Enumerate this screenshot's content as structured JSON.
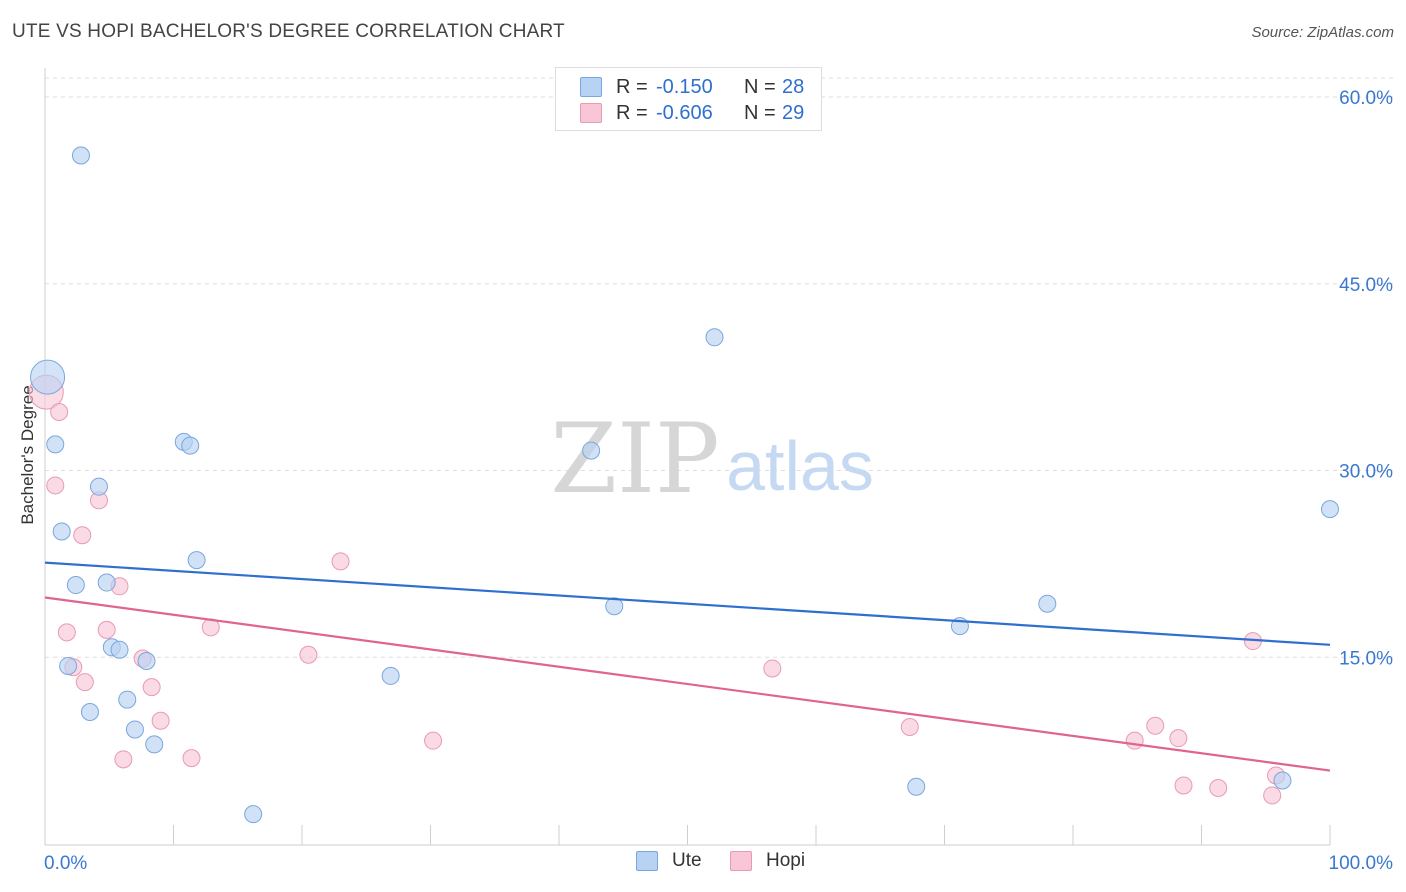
{
  "title": "UTE VS HOPI BACHELOR'S DEGREE CORRELATION CHART",
  "source": "Source: ZipAtlas.com",
  "watermark": {
    "zip": "ZIP",
    "atlas": "atlas"
  },
  "legend": {
    "ute": {
      "r_label": "R =",
      "r_value": "-0.150",
      "n_label": "N =",
      "n_value": "28"
    },
    "hopi": {
      "r_label": "R =",
      "r_value": "-0.606",
      "n_label": "N =",
      "n_value": "29"
    }
  },
  "bottom_legend": {
    "ute": "Ute",
    "hopi": "Hopi"
  },
  "colors": {
    "ute_fill": "#b8d2f3",
    "ute_stroke": "#7aa6de",
    "ute_line": "#2f6fd0",
    "hopi_fill": "#f8c6d6",
    "hopi_stroke": "#e99ab3",
    "hopi_line": "#e06492",
    "axis_text": "#3a78d0",
    "grid": "#dddddd"
  },
  "chart_data": {
    "type": "scatter",
    "title": "UTE VS HOPI BACHELOR'S DEGREE CORRELATION CHART",
    "xlabel": "",
    "ylabel": "Bachelor's Degree",
    "xlim": [
      0,
      100
    ],
    "ylim": [
      0,
      65
    ],
    "x_tick_labels": [
      "0.0%",
      "100.0%"
    ],
    "y_ticks": [
      15,
      30,
      45,
      60
    ],
    "y_tick_labels": [
      "15.0%",
      "30.0%",
      "45.0%",
      "60.0%"
    ],
    "grid": true,
    "series": [
      {
        "name": "Ute",
        "r": -0.15,
        "n": 28,
        "trend": {
          "x": [
            0,
            100
          ],
          "y": [
            22.6,
            16.0
          ]
        },
        "points": [
          {
            "x": 0.2,
            "y": 37.5,
            "big": true
          },
          {
            "x": 2.8,
            "y": 55.3
          },
          {
            "x": 0.8,
            "y": 32.1
          },
          {
            "x": 1.3,
            "y": 25.1
          },
          {
            "x": 1.8,
            "y": 14.3
          },
          {
            "x": 2.4,
            "y": 20.8
          },
          {
            "x": 3.5,
            "y": 10.6
          },
          {
            "x": 4.2,
            "y": 28.7
          },
          {
            "x": 4.8,
            "y": 21.0
          },
          {
            "x": 5.2,
            "y": 15.8
          },
          {
            "x": 5.8,
            "y": 15.6
          },
          {
            "x": 6.4,
            "y": 11.6
          },
          {
            "x": 7.0,
            "y": 9.2
          },
          {
            "x": 7.9,
            "y": 14.7
          },
          {
            "x": 8.5,
            "y": 8.0
          },
          {
            "x": 10.8,
            "y": 32.3
          },
          {
            "x": 11.3,
            "y": 32.0
          },
          {
            "x": 11.8,
            "y": 22.8
          },
          {
            "x": 16.2,
            "y": 2.4
          },
          {
            "x": 26.9,
            "y": 13.5
          },
          {
            "x": 42.5,
            "y": 31.6
          },
          {
            "x": 44.3,
            "y": 19.1
          },
          {
            "x": 52.1,
            "y": 40.7
          },
          {
            "x": 67.8,
            "y": 4.6
          },
          {
            "x": 71.2,
            "y": 17.5
          },
          {
            "x": 78.0,
            "y": 19.3
          },
          {
            "x": 96.3,
            "y": 5.1
          },
          {
            "x": 100.0,
            "y": 26.9
          }
        ]
      },
      {
        "name": "Hopi",
        "r": -0.606,
        "n": 29,
        "trend": {
          "x": [
            0,
            100
          ],
          "y": [
            19.8,
            5.9
          ]
        },
        "points": [
          {
            "x": 0.1,
            "y": 36.3,
            "big": true
          },
          {
            "x": 1.1,
            "y": 34.7
          },
          {
            "x": 0.8,
            "y": 28.8
          },
          {
            "x": 1.7,
            "y": 17.0
          },
          {
            "x": 2.2,
            "y": 14.2
          },
          {
            "x": 3.1,
            "y": 13.0
          },
          {
            "x": 2.9,
            "y": 24.8
          },
          {
            "x": 4.2,
            "y": 27.6
          },
          {
            "x": 4.8,
            "y": 17.2
          },
          {
            "x": 5.8,
            "y": 20.7
          },
          {
            "x": 6.1,
            "y": 6.8
          },
          {
            "x": 7.6,
            "y": 14.9
          },
          {
            "x": 8.3,
            "y": 12.6
          },
          {
            "x": 9.0,
            "y": 9.9
          },
          {
            "x": 11.4,
            "y": 6.9
          },
          {
            "x": 12.9,
            "y": 17.4
          },
          {
            "x": 20.5,
            "y": 15.2
          },
          {
            "x": 23.0,
            "y": 22.7
          },
          {
            "x": 30.2,
            "y": 8.3
          },
          {
            "x": 56.6,
            "y": 14.1
          },
          {
            "x": 67.3,
            "y": 9.4
          },
          {
            "x": 84.8,
            "y": 8.3
          },
          {
            "x": 86.4,
            "y": 9.5
          },
          {
            "x": 88.2,
            "y": 8.5
          },
          {
            "x": 88.6,
            "y": 4.7
          },
          {
            "x": 91.3,
            "y": 4.5
          },
          {
            "x": 94.0,
            "y": 16.3
          },
          {
            "x": 95.5,
            "y": 3.9
          },
          {
            "x": 95.8,
            "y": 5.5
          }
        ]
      }
    ]
  }
}
